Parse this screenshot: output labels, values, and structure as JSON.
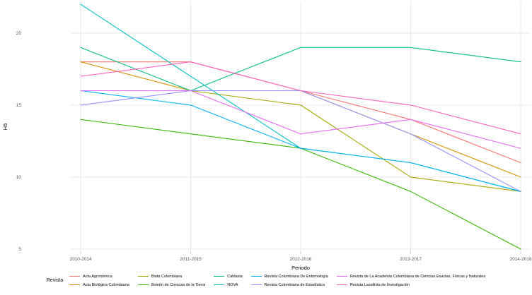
{
  "chart_data": {
    "type": "line",
    "x": [
      "2010-2014",
      "2011-2015",
      "2012-2016",
      "2013-2017",
      "2014-2018"
    ],
    "xlabel": "Periodo",
    "ylabel": "H5",
    "ylim": [
      4.8,
      22.2
    ],
    "yticks": [
      5,
      10,
      15,
      20
    ],
    "grid": true,
    "legend_title": "Revista",
    "legend_position": "bottom",
    "panel_background": "#ffffff",
    "gridline_color": "#e6e6e6",
    "tick_label_color": "#555555",
    "series": [
      {
        "name": "Acta Agronómica",
        "color": "#F8766D",
        "values": [
          18,
          18,
          16,
          14,
          11
        ]
      },
      {
        "name": "Acta Biológica Colombiana",
        "color": "#D89000",
        "values": [
          18,
          16,
          16,
          13,
          10
        ]
      },
      {
        "name": "Biota Colombiana",
        "color": "#A3A500",
        "values": [
          16,
          16,
          15,
          10,
          9
        ]
      },
      {
        "name": "Boletín de Ciencias de la Tierra",
        "color": "#39B600",
        "values": [
          14,
          13,
          12,
          9,
          5
        ]
      },
      {
        "name": "Caldasia",
        "color": "#00BF7D",
        "values": [
          19,
          16,
          19,
          19,
          18
        ]
      },
      {
        "name": "NOVA",
        "color": "#00BFC4",
        "values": [
          22,
          17,
          12,
          11,
          9
        ]
      },
      {
        "name": "Revista Colombiana De Entomología",
        "color": "#00B0F6",
        "values": [
          16,
          15,
          12,
          11,
          9
        ]
      },
      {
        "name": "Revista Colombiana de Estadística",
        "color": "#9590FF",
        "values": [
          15,
          16,
          16,
          13,
          9
        ]
      },
      {
        "name": "Revista de La Academia Colombiana de Ciencias Exactas, Físicas y Naturales",
        "color": "#E76BF3",
        "values": [
          16,
          16,
          13,
          14,
          12
        ]
      },
      {
        "name": "Revista Lasallista de Investigación",
        "color": "#FF62BC",
        "values": [
          17,
          18,
          16,
          15,
          13
        ]
      }
    ]
  }
}
